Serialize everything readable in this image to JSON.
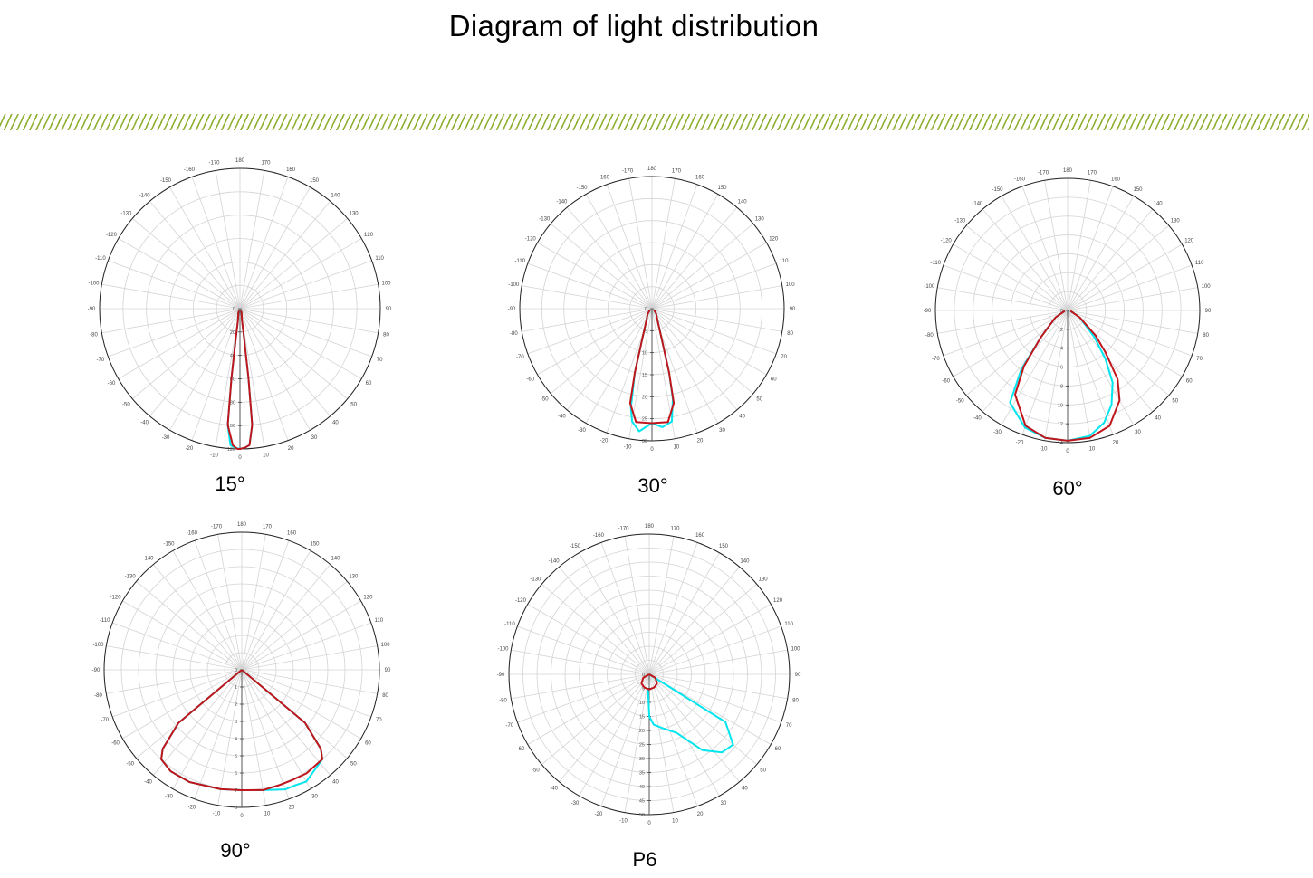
{
  "title": "Diagram of light distribution",
  "colors": {
    "c0_c180": "#00e5ee",
    "c90_c270": "#c0151b",
    "grid": "#d4d4d4",
    "stripe": "#8fb032"
  },
  "angle_labels": [
    "180",
    "170",
    "160",
    "150",
    "140",
    "130",
    "120",
    "110",
    "100",
    "90",
    "80",
    "70",
    "60",
    "50",
    "40",
    "30",
    "20",
    "10",
    "0",
    "-10",
    "-20",
    "-30",
    "-40",
    "-50",
    "-60",
    "-70",
    "-80",
    "-90",
    "-100",
    "-110",
    "-120",
    "-130",
    "-140",
    "-150",
    "-160",
    "-170"
  ],
  "chart_data": [
    {
      "type": "polar",
      "caption": "15°",
      "radial_ticks": [
        "0",
        "20",
        "40",
        "60",
        "80",
        "100",
        "120"
      ],
      "rmax": 120,
      "series": [
        {
          "color": "c0_c180",
          "points": [
            [
              -30,
              2
            ],
            [
              -20,
              4
            ],
            [
              -10,
              10
            ],
            [
              -8,
              25
            ],
            [
              -7,
              60
            ],
            [
              -6,
              100
            ],
            [
              -4,
              117
            ],
            [
              -2,
              119
            ],
            [
              0,
              120
            ],
            [
              2,
              119
            ],
            [
              4,
              117
            ],
            [
              6,
              100
            ],
            [
              7,
              60
            ],
            [
              8,
              25
            ],
            [
              10,
              10
            ],
            [
              20,
              4
            ],
            [
              30,
              2
            ]
          ]
        },
        {
          "color": "c90_c270",
          "points": [
            [
              -30,
              2
            ],
            [
              -20,
              4
            ],
            [
              -10,
              10
            ],
            [
              -8,
              25
            ],
            [
              -7,
              60
            ],
            [
              -6,
              100
            ],
            [
              -3,
              117
            ],
            [
              -1,
              120
            ],
            [
              0,
              120
            ],
            [
              2,
              119
            ],
            [
              4,
              117
            ],
            [
              6,
              100
            ],
            [
              7,
              60
            ],
            [
              8,
              25
            ],
            [
              10,
              10
            ],
            [
              20,
              4
            ],
            [
              30,
              2
            ]
          ]
        }
      ]
    },
    {
      "type": "polar",
      "caption": "30°",
      "radial_ticks": [
        "0",
        "5",
        "10",
        "15",
        "20",
        "25",
        "30"
      ],
      "rmax": 30,
      "series": [
        {
          "color": "c0_c180",
          "points": [
            [
              -60,
              0.5
            ],
            [
              -40,
              1.5
            ],
            [
              -25,
              3
            ],
            [
              -18,
              7
            ],
            [
              -15,
              15
            ],
            [
              -12,
              23
            ],
            [
              -10,
              26
            ],
            [
              -6,
              28
            ],
            [
              0,
              26
            ],
            [
              5,
              27
            ],
            [
              10,
              26
            ],
            [
              13,
              21
            ],
            [
              15,
              15
            ],
            [
              18,
              7
            ],
            [
              25,
              3
            ],
            [
              40,
              1.5
            ],
            [
              60,
              0.5
            ]
          ]
        },
        {
          "color": "c90_c270",
          "points": [
            [
              -60,
              0.5
            ],
            [
              -40,
              1.5
            ],
            [
              -25,
              3
            ],
            [
              -18,
              7
            ],
            [
              -15,
              15
            ],
            [
              -13,
              22
            ],
            [
              -8,
              26
            ],
            [
              0,
              26
            ],
            [
              8,
              26
            ],
            [
              13,
              22
            ],
            [
              15,
              15
            ],
            [
              18,
              7
            ],
            [
              25,
              3
            ],
            [
              40,
              1.5
            ],
            [
              60,
              0.5
            ]
          ]
        }
      ]
    },
    {
      "type": "polar",
      "caption": "60°",
      "radial_ticks": [
        "0",
        "2",
        "4",
        "6",
        "8",
        "10",
        "12",
        "14"
      ],
      "rmax": 14,
      "series": [
        {
          "color": "c0_c180",
          "points": [
            [
              -80,
              0.3
            ],
            [
              -60,
              1.5
            ],
            [
              -45,
              4
            ],
            [
              -38,
              8
            ],
            [
              -32,
              11.5
            ],
            [
              -20,
              13.2
            ],
            [
              -10,
              13.7
            ],
            [
              0,
              13.8
            ],
            [
              10,
              13.5
            ],
            [
              18,
              12.5
            ],
            [
              25,
              11
            ],
            [
              32,
              9
            ],
            [
              38,
              6.5
            ],
            [
              45,
              4
            ],
            [
              60,
              1.5
            ],
            [
              80,
              0.3
            ]
          ]
        },
        {
          "color": "c90_c270",
          "points": [
            [
              -80,
              0.3
            ],
            [
              -60,
              1.5
            ],
            [
              -45,
              4
            ],
            [
              -38,
              7.5
            ],
            [
              -32,
              10.5
            ],
            [
              -20,
              13
            ],
            [
              -10,
              13.7
            ],
            [
              0,
              13.8
            ],
            [
              10,
              13.7
            ],
            [
              20,
              13
            ],
            [
              30,
              11
            ],
            [
              36,
              9
            ],
            [
              42,
              6
            ],
            [
              48,
              4
            ],
            [
              60,
              1.5
            ],
            [
              80,
              0.3
            ]
          ]
        }
      ]
    },
    {
      "type": "polar",
      "caption": "90°",
      "radial_ticks": [
        "0",
        "1",
        "2",
        "3",
        "4",
        "5",
        "6",
        "7",
        "8"
      ],
      "rmax": 8,
      "series": [
        {
          "color": "c0_c180",
          "points": [
            [
              -90,
              0
            ],
            [
              -50,
              4.8
            ],
            [
              -45,
              6.5
            ],
            [
              -42,
              7
            ],
            [
              -35,
              7.2
            ],
            [
              -25,
              7.2
            ],
            [
              -10,
              7.05
            ],
            [
              0,
              7
            ],
            [
              10,
              7.1
            ],
            [
              20,
              7.4
            ],
            [
              25,
              7.4
            ],
            [
              30,
              7.5
            ],
            [
              42,
              7
            ],
            [
              45,
              6.5
            ],
            [
              50,
              4.8
            ],
            [
              90,
              0
            ]
          ]
        },
        {
          "color": "c90_c270",
          "points": [
            [
              -90,
              0
            ],
            [
              -50,
              4.8
            ],
            [
              -45,
              6.5
            ],
            [
              -42,
              7
            ],
            [
              -35,
              7.2
            ],
            [
              -25,
              7.2
            ],
            [
              -10,
              7.05
            ],
            [
              0,
              7
            ],
            [
              10,
              7.1
            ],
            [
              18,
              7.05
            ],
            [
              25,
              7.05
            ],
            [
              32,
              7.1
            ],
            [
              42,
              7
            ],
            [
              45,
              6.5
            ],
            [
              50,
              4.8
            ],
            [
              90,
              0
            ]
          ]
        }
      ]
    },
    {
      "type": "polar",
      "caption": "P6",
      "radial_ticks": [
        "0",
        "5",
        "10",
        "15",
        "20",
        "25",
        "30",
        "35",
        "40",
        "45",
        "50"
      ],
      "rmax": 50,
      "series": [
        {
          "color": "c0_c180",
          "points": [
            [
              -5,
              5
            ],
            [
              0,
              15
            ],
            [
              5,
              18
            ],
            [
              15,
              20
            ],
            [
              25,
              23
            ],
            [
              35,
              33
            ],
            [
              43,
              38
            ],
            [
              50,
              39
            ],
            [
              58,
              32
            ],
            [
              90,
              0
            ]
          ]
        },
        {
          "color": "c90_c270",
          "points": [
            [
              -90,
              0
            ],
            [
              -60,
              2.5
            ],
            [
              -40,
              4.3
            ],
            [
              -20,
              5
            ],
            [
              0,
              5.4
            ],
            [
              20,
              5
            ],
            [
              40,
              4.3
            ],
            [
              60,
              2.5
            ],
            [
              90,
              0
            ]
          ]
        }
      ]
    }
  ]
}
